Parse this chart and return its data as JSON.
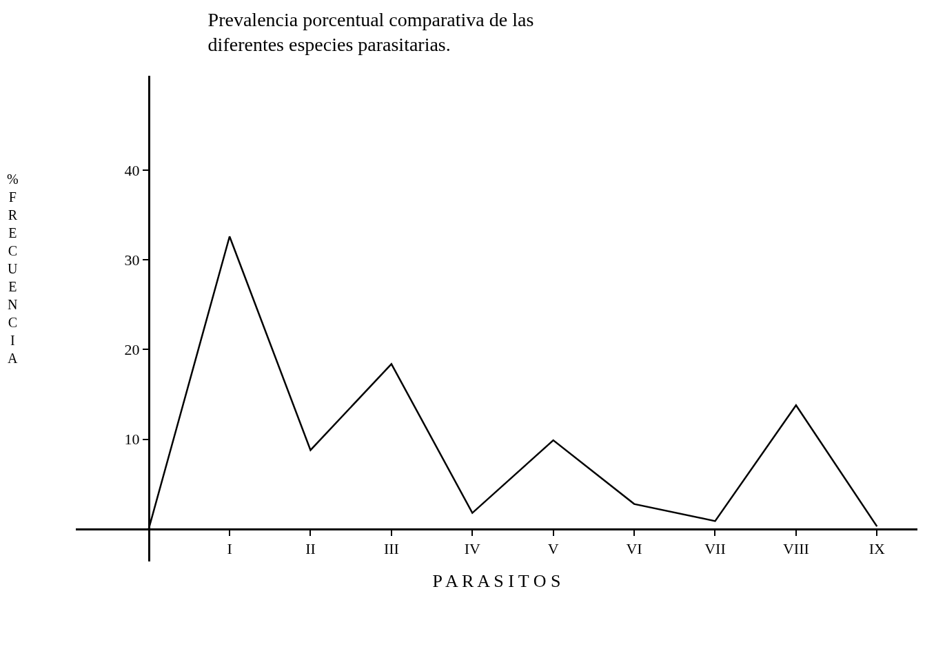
{
  "chart_data": {
    "type": "line",
    "title": "Prevalencia porcentual comparativa de las\ndiferentes especies parasitarias.",
    "xlabel": "P A R A S I T O S",
    "ylabel": "% FRECUENCIA",
    "categories": [
      null,
      "I",
      "II",
      "III",
      "IV",
      "V",
      "VI",
      "VII",
      "VIII",
      "IX"
    ],
    "series": [
      {
        "color": "#000000",
        "values": [
          0,
          32.6,
          8.8,
          18.4,
          1.8,
          9.9,
          2.8,
          0.9,
          13.8,
          0.3
        ]
      }
    ],
    "ylim": [
      -3.6,
      50.5
    ],
    "yticks": [
      10,
      20,
      30,
      40
    ],
    "grid": false,
    "marker": "none",
    "line_style": "solid"
  }
}
